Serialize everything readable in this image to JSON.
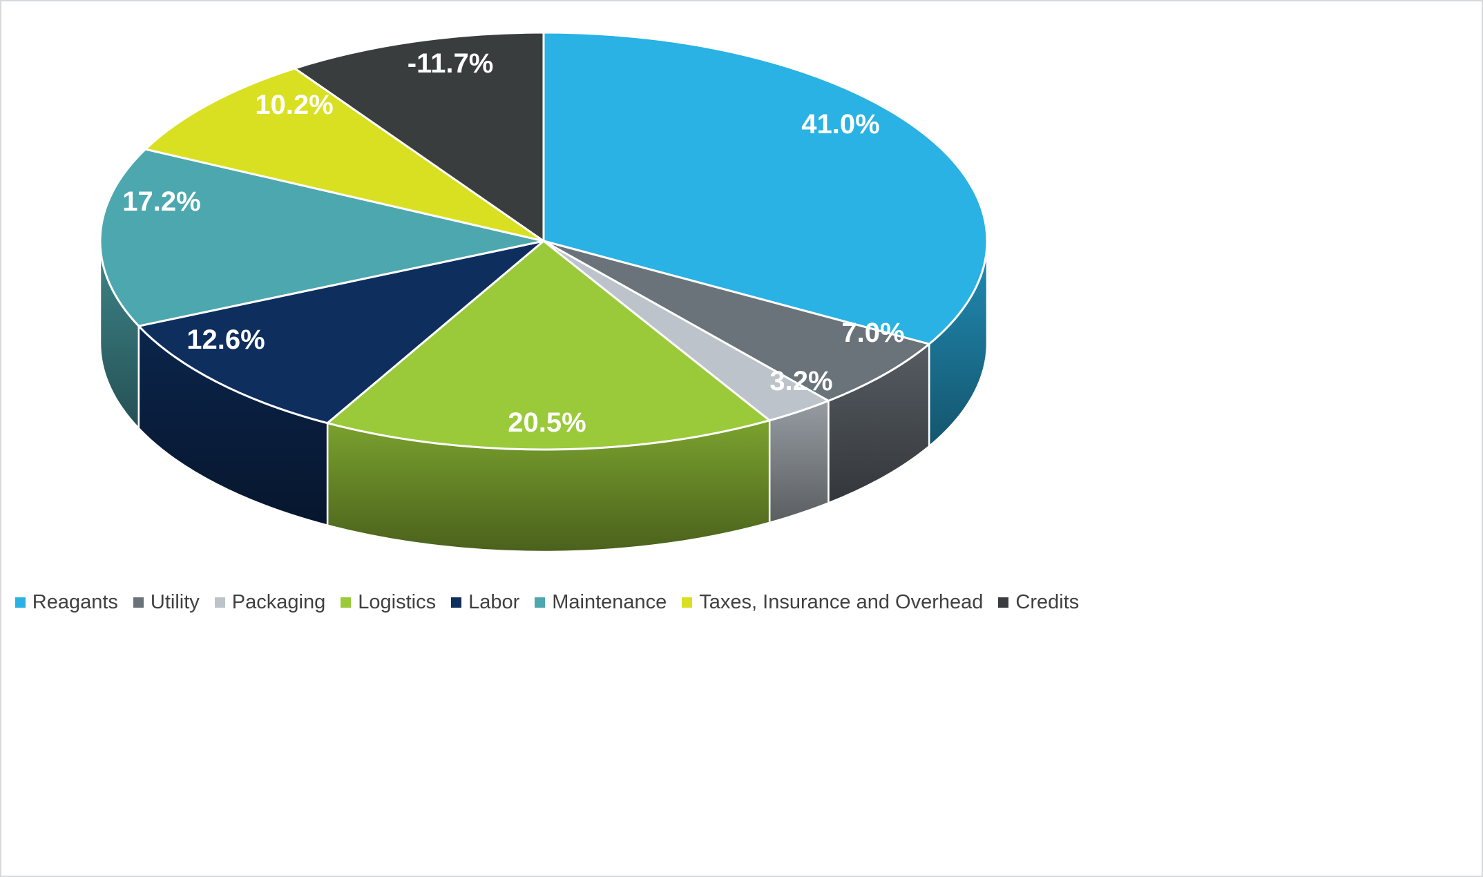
{
  "chart_data": {
    "type": "pie",
    "style": "3d",
    "title": "",
    "data_labels": "percent",
    "legend_position": "bottom",
    "start_angle_deg": 0,
    "direction": "clockwise",
    "slices": [
      {
        "label": "Reagants",
        "value": 41.0,
        "display": "41.0%",
        "color": "#29b2e3"
      },
      {
        "label": "Utility",
        "value": 7.0,
        "display": "7.0%",
        "color": "#6b737a"
      },
      {
        "label": "Packaging",
        "value": 3.2,
        "display": "3.2%",
        "color": "#bcc3ca"
      },
      {
        "label": "Logistics",
        "value": 20.5,
        "display": "20.5%",
        "color": "#9aca3a"
      },
      {
        "label": "Labor",
        "value": 12.6,
        "display": "12.6%",
        "color": "#0e2e5e"
      },
      {
        "label": "Maintenance",
        "value": 17.2,
        "display": "17.2%",
        "color": "#4da7ae"
      },
      {
        "label": "Taxes, Insurance and Overhead",
        "value": 10.2,
        "display": "10.2%",
        "color": "#d9e021"
      },
      {
        "label": "Credits",
        "value": -11.7,
        "display": "-11.7%",
        "color": "#393d3e"
      }
    ],
    "colors": {
      "background": "#ffffff",
      "data_label_text": "#ffffff",
      "legend_text": "#404040",
      "slice_border": "#ffffff",
      "frame_border": "#d6dadd"
    }
  }
}
